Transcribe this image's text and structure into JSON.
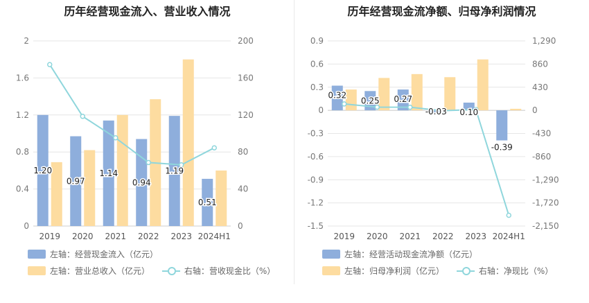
{
  "chart_data": [
    {
      "type": "bar",
      "title": "历年经营现金流入、营业收入情况",
      "categories": [
        "2019",
        "2020",
        "2021",
        "2022",
        "2023",
        "2024H1"
      ],
      "y_left": {
        "min": 0,
        "max": 2,
        "ticks": [
          "0",
          "0.4",
          "0.8",
          "1.2",
          "1.6",
          "2"
        ]
      },
      "y_right": {
        "min": 0,
        "max": 200,
        "ticks": [
          "0",
          "40",
          "80",
          "120",
          "160",
          "200"
        ]
      },
      "series": [
        {
          "name": "左轴：经营现金流入（亿元）",
          "axis": "left",
          "kind": "bar",
          "color": "#8eaedc",
          "values": [
            1.2,
            0.97,
            1.14,
            0.94,
            1.19,
            0.51
          ],
          "labels": [
            "1.20",
            "0.97",
            "1.14",
            "0.94",
            "1.19",
            "0.51"
          ]
        },
        {
          "name": "左轴：营业总收入（亿元）",
          "axis": "left",
          "kind": "bar",
          "color": "#fddca0",
          "values": [
            0.69,
            0.82,
            1.2,
            1.37,
            1.8,
            0.6
          ]
        },
        {
          "name": "右轴：营收现金比（%）",
          "axis": "right",
          "kind": "line",
          "color": "#8fd6dc",
          "values": [
            174.4,
            118.5,
            95.3,
            68.6,
            66.1,
            84.5
          ]
        }
      ],
      "grid": true,
      "legend": "bottom-left"
    },
    {
      "type": "bar",
      "title": "历年经营现金流净额、归母净利润情况",
      "categories": [
        "2019",
        "2020",
        "2021",
        "2022",
        "2023",
        "2024H1"
      ],
      "y_left": {
        "min": -1.5,
        "max": 0.9,
        "ticks": [
          "-1.5",
          "-1.2",
          "-0.9",
          "-0.6",
          "-0.3",
          "0",
          "0.3",
          "0.6",
          "0.9"
        ]
      },
      "y_right": {
        "min": -2150,
        "max": 1290,
        "ticks": [
          "-2,150",
          "-1,720",
          "-1,290",
          "-860",
          "-430",
          "0",
          "430",
          "860",
          "1,290"
        ]
      },
      "series": [
        {
          "name": "左轴：经营活动现金流净额（亿元）",
          "axis": "left",
          "kind": "bar",
          "color": "#8eaedc",
          "values": [
            0.32,
            0.25,
            0.27,
            -0.03,
            0.1,
            -0.39
          ],
          "labels": [
            "0.32",
            "0.25",
            "0.27",
            "-0.03",
            "0.10",
            "-0.39"
          ]
        },
        {
          "name": "左轴：归母净利润（亿元）",
          "axis": "left",
          "kind": "bar",
          "color": "#fddca0",
          "values": [
            0.27,
            0.42,
            0.47,
            0.43,
            0.66,
            0.02
          ]
        },
        {
          "name": "右轴：净现比（%）",
          "axis": "right",
          "kind": "line",
          "color": "#8fd6dc",
          "values": [
            118.5,
            59.5,
            57.4,
            -7.0,
            15.2,
            -1950
          ]
        }
      ],
      "grid": true,
      "legend": "bottom-left"
    }
  ]
}
